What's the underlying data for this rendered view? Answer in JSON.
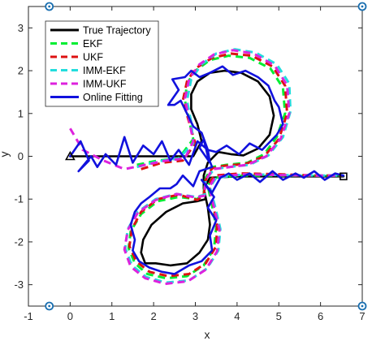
{
  "chart_data": {
    "type": "line",
    "xlabel": "x",
    "ylabel": "y",
    "xlim": [
      -1,
      7
    ],
    "ylim": [
      -3.5,
      3.5
    ],
    "xticks": [
      -1,
      0,
      1,
      2,
      3,
      4,
      5,
      6,
      7
    ],
    "yticks": [
      -3,
      -2,
      -1,
      0,
      1,
      2,
      3
    ],
    "grid": false,
    "legend_position": "top-left",
    "legend": [
      {
        "label": "True Trajectory",
        "color": "#000000",
        "dash": "solid"
      },
      {
        "label": "EKF",
        "color": "#00ee33",
        "dash": "dashed"
      },
      {
        "label": "UKF",
        "color": "#dd1111",
        "dash": "dashed"
      },
      {
        "label": "IMM-EKF",
        "color": "#22dddd",
        "dash": "dashed"
      },
      {
        "label": "IMM-UKF",
        "color": "#dd22dd",
        "dash": "dashed"
      },
      {
        "label": "Online Fitting",
        "color": "#1111dd",
        "dash": "solid"
      }
    ],
    "start_marker": {
      "x": 0,
      "y": 0,
      "shape": "triangle"
    },
    "end_marker": {
      "x": 6.55,
      "y": -0.47,
      "shape": "square"
    },
    "corner_markers": [
      {
        "x": -0.5,
        "y": 3.5
      },
      {
        "x": 7,
        "y": 3.5
      },
      {
        "x": -0.5,
        "y": -3.5
      },
      {
        "x": 7,
        "y": -3.5
      }
    ],
    "series": [
      {
        "name": "True Trajectory",
        "color": "#000000",
        "x": [
          0,
          0.5,
          1,
          1.5,
          2,
          2.5,
          2.95,
          3.15,
          3.05,
          2.9,
          2.9,
          3.05,
          3.35,
          3.7,
          4.1,
          4.5,
          4.78,
          4.88,
          4.78,
          4.5,
          4.15,
          3.85,
          3.55,
          3.3,
          3.2,
          3.2,
          3.25,
          3.05,
          2.7,
          2.3,
          1.95,
          1.75,
          1.7,
          1.8,
          2.05,
          2.4,
          2.8,
          3.1,
          3.3,
          3.35,
          3.3,
          3.2,
          3.35,
          4,
          5,
          6,
          6.55
        ],
        "y": [
          0,
          0,
          0,
          0,
          0,
          0,
          0,
          0.35,
          0.75,
          1.1,
          1.45,
          1.75,
          1.95,
          2.0,
          1.95,
          1.75,
          1.4,
          0.95,
          0.5,
          0.18,
          0.02,
          0.05,
          0.1,
          -0.15,
          -0.45,
          -0.75,
          -1.0,
          -1.05,
          -1.1,
          -1.3,
          -1.6,
          -1.95,
          -2.25,
          -2.5,
          -2.5,
          -2.55,
          -2.5,
          -2.25,
          -1.95,
          -1.6,
          -1.2,
          -0.75,
          -0.5,
          -0.47,
          -0.47,
          -0.47,
          -0.47
        ]
      },
      {
        "name": "EKF",
        "color": "#00ee33",
        "x": [
          1.6,
          2.1,
          2.6,
          2.95,
          2.85,
          2.75,
          2.8,
          3.0,
          3.35,
          3.8,
          4.3,
          4.8,
          5.1,
          5.15,
          4.95,
          4.65,
          4.25,
          3.75,
          3.4,
          3.25,
          3.2,
          3.05,
          2.6,
          2.1,
          1.7,
          1.45,
          1.4,
          1.55,
          1.85,
          2.3,
          2.8,
          3.2,
          3.45,
          3.5,
          3.4,
          3.3,
          3.4,
          4.1,
          5.0,
          5.9,
          6.5
        ],
        "y": [
          -0.2,
          -0.1,
          -0.05,
          0.4,
          0.85,
          1.3,
          1.7,
          2.0,
          2.25,
          2.35,
          2.3,
          2.05,
          1.6,
          1.0,
          0.45,
          0.05,
          -0.15,
          -0.2,
          -0.25,
          -0.5,
          -0.85,
          -1.0,
          -0.95,
          -1.05,
          -1.35,
          -1.75,
          -2.15,
          -2.5,
          -2.75,
          -2.85,
          -2.8,
          -2.55,
          -2.15,
          -1.65,
          -1.15,
          -0.7,
          -0.5,
          -0.45,
          -0.45,
          -0.45,
          -0.45
        ]
      },
      {
        "name": "UKF",
        "color": "#dd1111",
        "x": [
          1.7,
          2.2,
          2.7,
          3.0,
          2.85,
          2.7,
          2.8,
          3.0,
          3.4,
          3.85,
          4.35,
          4.85,
          5.15,
          5.2,
          5.0,
          4.65,
          4.2,
          3.7,
          3.4,
          3.25,
          3.2,
          3.05,
          2.6,
          2.1,
          1.7,
          1.48,
          1.42,
          1.58,
          1.9,
          2.35,
          2.85,
          3.25,
          3.5,
          3.52,
          3.42,
          3.32,
          3.45,
          4.1,
          5.0,
          5.9,
          6.5
        ],
        "y": [
          -0.3,
          -0.15,
          -0.1,
          0.3,
          0.8,
          1.3,
          1.75,
          2.05,
          2.3,
          2.4,
          2.35,
          2.1,
          1.65,
          1.0,
          0.4,
          0.0,
          -0.18,
          -0.22,
          -0.28,
          -0.55,
          -0.9,
          -1.02,
          -0.9,
          -1.0,
          -1.3,
          -1.7,
          -2.1,
          -2.45,
          -2.7,
          -2.8,
          -2.75,
          -2.5,
          -2.1,
          -1.6,
          -1.1,
          -0.65,
          -0.45,
          -0.4,
          -0.42,
          -0.45,
          -0.45
        ]
      },
      {
        "name": "IMM-EKF",
        "color": "#22dddd",
        "x": [
          1.6,
          2.1,
          2.6,
          2.95,
          2.9,
          2.8,
          2.9,
          3.15,
          3.5,
          3.95,
          4.45,
          4.95,
          5.25,
          5.28,
          5.1,
          4.75,
          4.3,
          3.8,
          3.45,
          3.25,
          3.22,
          3.02,
          2.55,
          2.05,
          1.62,
          1.38,
          1.32,
          1.48,
          1.82,
          2.3,
          2.85,
          3.28,
          3.55,
          3.6,
          3.48,
          3.35,
          3.5,
          4.2,
          5.1,
          5.95,
          6.55
        ],
        "y": [
          -0.25,
          -0.12,
          -0.05,
          0.3,
          0.8,
          1.3,
          1.8,
          2.15,
          2.4,
          2.5,
          2.42,
          2.15,
          1.7,
          1.05,
          0.45,
          0.02,
          -0.2,
          -0.25,
          -0.3,
          -0.55,
          -0.9,
          -0.95,
          -0.88,
          -1.0,
          -1.3,
          -1.7,
          -2.15,
          -2.55,
          -2.82,
          -2.95,
          -2.9,
          -2.62,
          -2.2,
          -1.7,
          -1.2,
          -0.72,
          -0.5,
          -0.42,
          -0.44,
          -0.45,
          -0.45
        ]
      },
      {
        "name": "IMM-UKF",
        "color": "#dd22dd",
        "x": [
          0,
          0.3,
          0.8,
          1.3,
          1.8,
          2.3,
          2.75,
          2.95,
          2.85,
          2.75,
          2.85,
          3.1,
          3.45,
          3.9,
          4.4,
          4.9,
          5.2,
          5.25,
          5.05,
          4.7,
          4.25,
          3.75,
          3.42,
          3.24,
          3.22,
          3.0,
          2.55,
          2.05,
          1.62,
          1.38,
          1.3,
          1.45,
          1.8,
          2.28,
          2.82,
          3.25,
          3.52,
          3.58,
          3.45,
          3.33,
          3.48,
          4.15,
          5.05,
          5.9,
          6.5
        ],
        "y": [
          0.65,
          0.15,
          -0.1,
          -0.3,
          -0.2,
          -0.1,
          -0.05,
          0.35,
          0.85,
          1.35,
          1.8,
          2.15,
          2.38,
          2.48,
          2.4,
          2.12,
          1.66,
          1.0,
          0.42,
          0.0,
          -0.2,
          -0.26,
          -0.3,
          -0.56,
          -0.92,
          -0.96,
          -0.88,
          -1.02,
          -1.32,
          -1.72,
          -2.18,
          -2.58,
          -2.85,
          -2.98,
          -2.92,
          -2.65,
          -2.22,
          -1.72,
          -1.2,
          -0.72,
          -0.48,
          -0.42,
          -0.44,
          -0.45,
          -0.45
        ]
      },
      {
        "name": "Online Fitting",
        "color": "#1111dd",
        "x": [
          0.0,
          0.25,
          0.45,
          0.2,
          0.5,
          0.65,
          0.85,
          1.1,
          1.3,
          1.5,
          1.75,
          2.0,
          2.2,
          2.4,
          2.6,
          2.85,
          3.05,
          3.3,
          3.15,
          2.95,
          2.8,
          2.65,
          2.5,
          2.35,
          2.6,
          2.45,
          2.75,
          2.9,
          3.1,
          3.35,
          3.65,
          3.9,
          4.2,
          4.5,
          4.75,
          4.9,
          5.0,
          5.1,
          4.95,
          4.8,
          4.6,
          4.3,
          4.05,
          3.75,
          3.5,
          3.3,
          3.35,
          3.1,
          3.2,
          3.3,
          3.4,
          3.1,
          2.95,
          2.7,
          2.55,
          2.4,
          2.15,
          1.9,
          1.7,
          1.55,
          1.45,
          1.55,
          1.5,
          1.65,
          1.9,
          2.2,
          2.5,
          2.85,
          3.15,
          3.4,
          3.35,
          3.5,
          3.3,
          3.45,
          3.3,
          3.15,
          3.4,
          3.6,
          3.8,
          4.0,
          4.3,
          4.55,
          4.85,
          5.1,
          5.4,
          5.6,
          5.85,
          6.1,
          6.35,
          6.55
        ],
        "y": [
          0.0,
          0.35,
          -0.1,
          -0.35,
          0.0,
          -0.25,
          0.05,
          -0.2,
          0.45,
          -0.15,
          0.25,
          0.05,
          0.35,
          -0.1,
          0.15,
          -0.2,
          0.35,
          0.15,
          0.55,
          0.7,
          1.0,
          1.3,
          1.2,
          1.2,
          1.55,
          1.8,
          1.85,
          2.0,
          1.85,
          1.95,
          2.1,
          1.9,
          2.0,
          1.85,
          1.65,
          1.3,
          1.15,
          0.75,
          0.5,
          0.35,
          0.15,
          0.3,
          0.05,
          0.25,
          0.1,
          0.15,
          -0.15,
          0.2,
          0.4,
          0.0,
          -0.25,
          -0.35,
          -0.7,
          -0.45,
          -0.65,
          -0.75,
          -0.75,
          -0.95,
          -1.1,
          -1.3,
          -1.6,
          -1.95,
          -2.2,
          -2.45,
          -2.6,
          -2.7,
          -2.75,
          -2.55,
          -2.45,
          -2.2,
          -1.85,
          -1.5,
          -1.2,
          -0.95,
          -0.75,
          -0.55,
          -0.85,
          -0.5,
          -0.4,
          -0.55,
          -0.4,
          -0.6,
          -0.35,
          -0.55,
          -0.4,
          -0.5,
          -0.35,
          -0.55,
          -0.4,
          -0.45
        ]
      }
    ]
  }
}
